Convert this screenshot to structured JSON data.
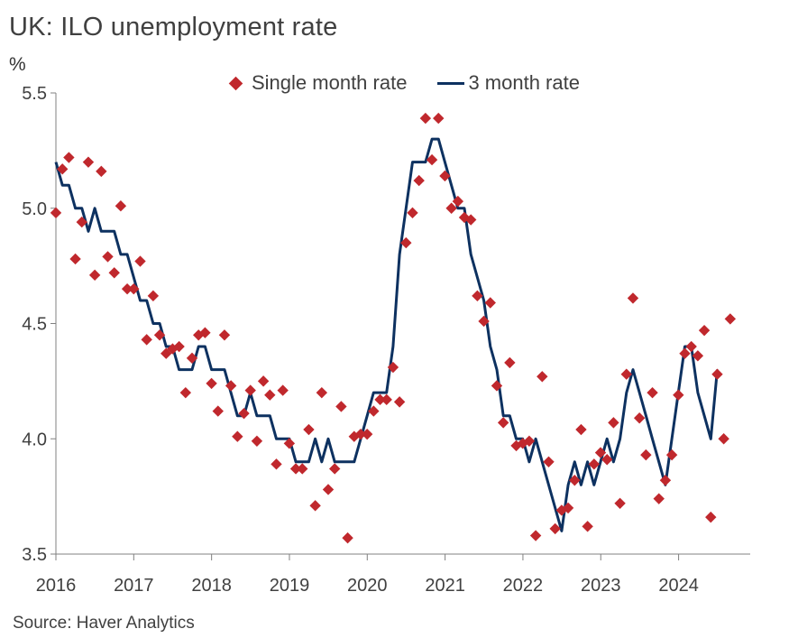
{
  "chart_data": {
    "type": "line",
    "title": "UK: ILO unemployment rate",
    "ylabel": "%",
    "source": "Source: Haver Analytics",
    "ylim": [
      3.5,
      5.5
    ],
    "yticks": [
      "3.5",
      "4.0",
      "4.5",
      "5.0",
      "5.5"
    ],
    "xticks": [
      "2016",
      "2017",
      "2018",
      "2019",
      "2020",
      "2021",
      "2022",
      "2023",
      "2024"
    ],
    "x_start": 2016.0,
    "x_end": 2024.92,
    "legend": {
      "single": "Single month rate",
      "three": "3 month rate"
    },
    "colors": {
      "single": "#c0282d",
      "three": "#0d3160",
      "axis": "#808080"
    },
    "series": [
      {
        "name": "Single month rate",
        "style": "scatter",
        "start": 2016.0,
        "step": 0.0833,
        "values": [
          4.98,
          5.17,
          5.22,
          4.78,
          4.94,
          5.2,
          4.71,
          5.16,
          4.79,
          4.72,
          5.01,
          4.65,
          4.65,
          4.77,
          4.43,
          4.62,
          4.45,
          4.37,
          4.39,
          4.4,
          4.2,
          4.35,
          4.45,
          4.46,
          4.24,
          4.12,
          4.45,
          4.23,
          4.01,
          4.11,
          4.21,
          3.99,
          4.25,
          4.19,
          3.89,
          4.21,
          3.98,
          3.87,
          3.87,
          4.04,
          3.71,
          4.2,
          3.78,
          3.87,
          4.14,
          3.57,
          4.01,
          4.02,
          4.02,
          4.12,
          4.17,
          4.17,
          4.31,
          4.16,
          4.85,
          4.98,
          5.12,
          5.39,
          5.21,
          5.39,
          5.14,
          5.0,
          5.03,
          4.96,
          4.95,
          4.62,
          4.51,
          4.59,
          4.23,
          4.07,
          4.33,
          3.97,
          3.98,
          3.99,
          3.58,
          4.27,
          3.9,
          3.61,
          3.69,
          3.7,
          3.82,
          4.04,
          3.62,
          3.89,
          3.94,
          3.91,
          4.07,
          3.72,
          4.28,
          4.61,
          4.09,
          3.93,
          4.2,
          3.74,
          3.82,
          3.93,
          4.19,
          4.37,
          4.4,
          4.36,
          4.47,
          3.66,
          4.28,
          4.0,
          4.52
        ]
      },
      {
        "name": "3 month rate",
        "style": "line",
        "start": 2016.0,
        "step": 0.0833,
        "values": [
          5.2,
          5.1,
          5.1,
          5.0,
          5.0,
          4.9,
          5.0,
          4.9,
          4.9,
          4.9,
          4.8,
          4.8,
          4.7,
          4.6,
          4.6,
          4.5,
          4.5,
          4.4,
          4.4,
          4.3,
          4.3,
          4.3,
          4.4,
          4.4,
          4.3,
          4.3,
          4.3,
          4.2,
          4.1,
          4.1,
          4.2,
          4.1,
          4.1,
          4.1,
          4.0,
          4.0,
          4.0,
          3.9,
          3.9,
          3.9,
          4.0,
          3.9,
          4.0,
          3.9,
          3.9,
          3.9,
          3.9,
          4.0,
          4.1,
          4.2,
          4.2,
          4.2,
          4.4,
          4.8,
          5.0,
          5.2,
          5.2,
          5.2,
          5.3,
          5.3,
          5.2,
          5.1,
          5.0,
          5.0,
          4.8,
          4.7,
          4.6,
          4.4,
          4.3,
          4.1,
          4.1,
          4.0,
          4.0,
          3.9,
          4.0,
          3.9,
          3.8,
          3.7,
          3.6,
          3.8,
          3.9,
          3.8,
          3.9,
          3.8,
          3.9,
          4.0,
          3.9,
          4.0,
          4.2,
          4.3,
          4.2,
          4.1,
          4.0,
          3.9,
          3.8,
          4.0,
          4.2,
          4.4,
          4.4,
          4.2,
          4.1,
          4.0,
          4.3
        ]
      }
    ]
  }
}
